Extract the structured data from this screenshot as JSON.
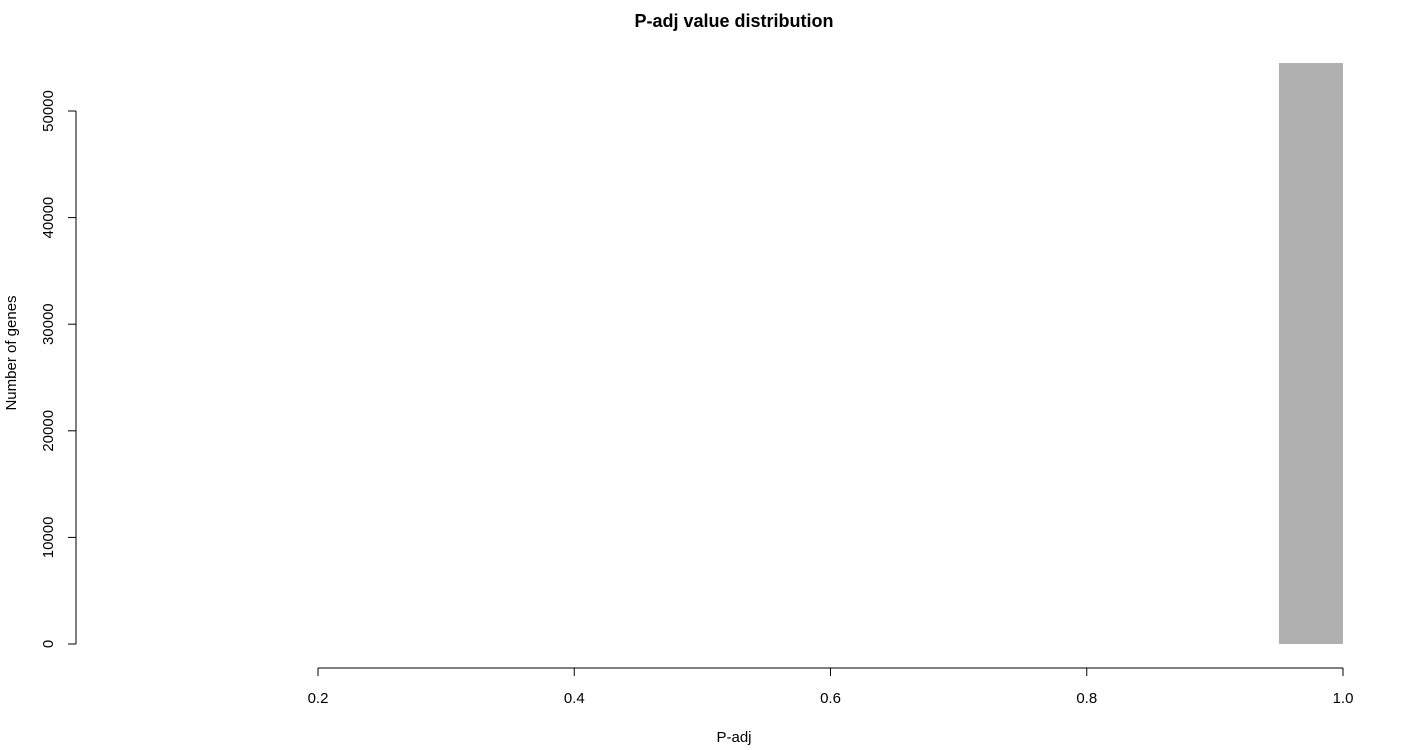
{
  "chart_data": {
    "type": "bar",
    "title": "P-adj value distribution",
    "xlabel": "P-adj",
    "ylabel": "Number of genes",
    "xlim": [
      0.2,
      1.0
    ],
    "ylim": [
      0,
      50000
    ],
    "x_ticks": [
      "0.2",
      "0.4",
      "0.6",
      "0.8",
      "1.0"
    ],
    "y_ticks": [
      "0",
      "10000",
      "20000",
      "30000",
      "40000",
      "50000"
    ],
    "bins": [
      {
        "x0": 0.95,
        "x1": 1.0,
        "count": 54500
      }
    ],
    "bar_color": "#b0b0b0",
    "grid": false,
    "legend": "none"
  }
}
